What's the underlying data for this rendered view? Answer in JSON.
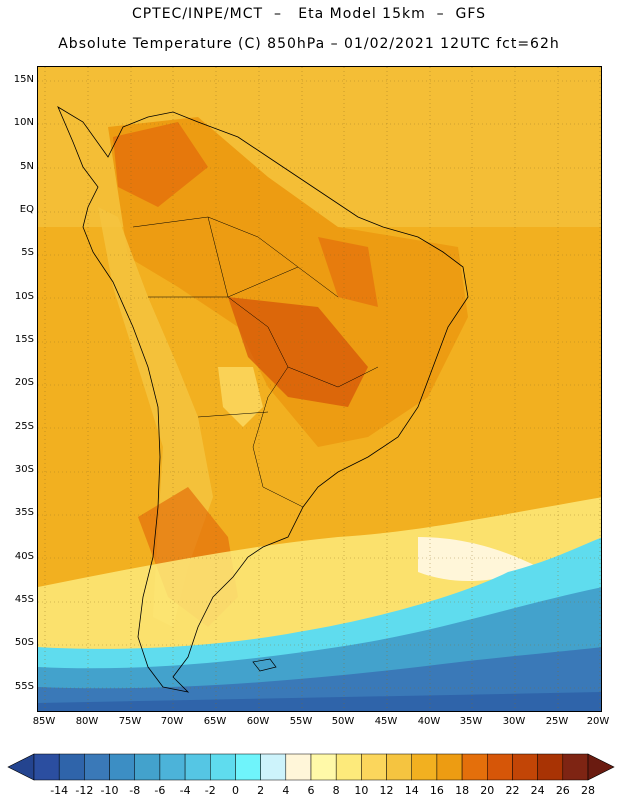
{
  "header": {
    "line1": "CPTEC/INPE/MCT  –   Eta Model 15km  –  GFS",
    "line2": "Absolute Temperature (C) 850hPa – 01/02/2021 12UTC fct=62h"
  },
  "map": {
    "lat_labels": [
      "15N",
      "10N",
      "5N",
      "EQ",
      "5S",
      "10S",
      "15S",
      "20S",
      "25S",
      "30S",
      "35S",
      "40S",
      "45S",
      "50S",
      "55S"
    ],
    "lon_labels": [
      "85W",
      "80W",
      "75W",
      "70W",
      "65W",
      "60W",
      "55W",
      "50W",
      "45W",
      "40W",
      "35W",
      "30W",
      "25W",
      "20W"
    ]
  },
  "colorbar": {
    "labels": [
      "-14",
      "-12",
      "-10",
      "-8",
      "-6",
      "-4",
      "-2",
      "0",
      "2",
      "4",
      "6",
      "8",
      "10",
      "12",
      "14",
      "16",
      "18",
      "20",
      "22",
      "24",
      "26",
      "28"
    ],
    "colors": [
      "#2b4ea0",
      "#2f64aa",
      "#3a79b8",
      "#3c8ec4",
      "#43a2cc",
      "#4cb3d9",
      "#55c6e4",
      "#5fdcee",
      "#6ff4fb",
      "#cdf3fb",
      "#fff6d9",
      "#fff9a8",
      "#fdea7b",
      "#fbd65c",
      "#f5c440",
      "#f2b020",
      "#ed9c12",
      "#e46f0b",
      "#d65608",
      "#c24506",
      "#a83304",
      "#7e2413"
    ]
  }
}
